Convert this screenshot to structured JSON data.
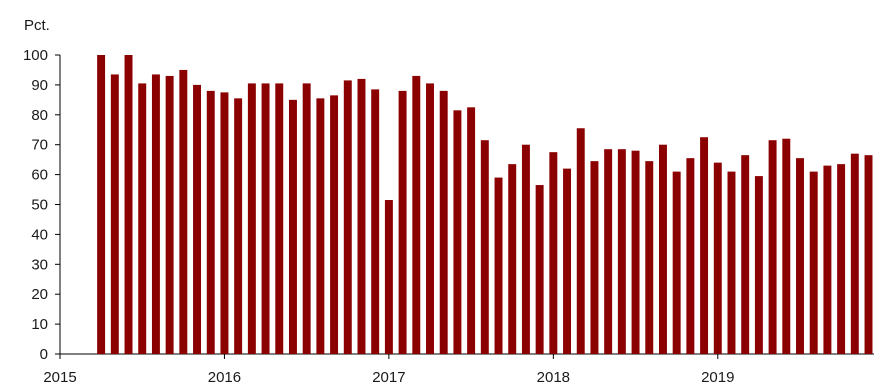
{
  "chart_data": {
    "type": "bar",
    "title": "",
    "ylabel": "Pct.",
    "xlabel": "",
    "ylim": [
      0,
      100
    ],
    "yticks": [
      0,
      10,
      20,
      30,
      40,
      50,
      60,
      70,
      80,
      90,
      100
    ],
    "xlim": [
      2015,
      2019.95
    ],
    "xticks": [
      "2015",
      "2016",
      "2017",
      "2018",
      "2019"
    ],
    "grid": false,
    "legend": "none",
    "bar_color": "#8b0000",
    "series": [
      {
        "x_start": "2015-04",
        "values": [
          100,
          93.5,
          100,
          90.5,
          93.5,
          93,
          95,
          90,
          88,
          87.5,
          85.5,
          90.5,
          90.5,
          90.5,
          85,
          90.5,
          85.5,
          86.5,
          91.5,
          92,
          88.5,
          51.5,
          88,
          93,
          90.5,
          88,
          81.5,
          82.5,
          71.5,
          59,
          63.5,
          70,
          56.5,
          67.5,
          62,
          75.5,
          64.5,
          68.5,
          68.5,
          68,
          64.5,
          70,
          61,
          65.5,
          72.5,
          64,
          61,
          66.5,
          59.5,
          71.5,
          72,
          65.5,
          61,
          63,
          63.5,
          67,
          66.5
        ]
      }
    ]
  }
}
